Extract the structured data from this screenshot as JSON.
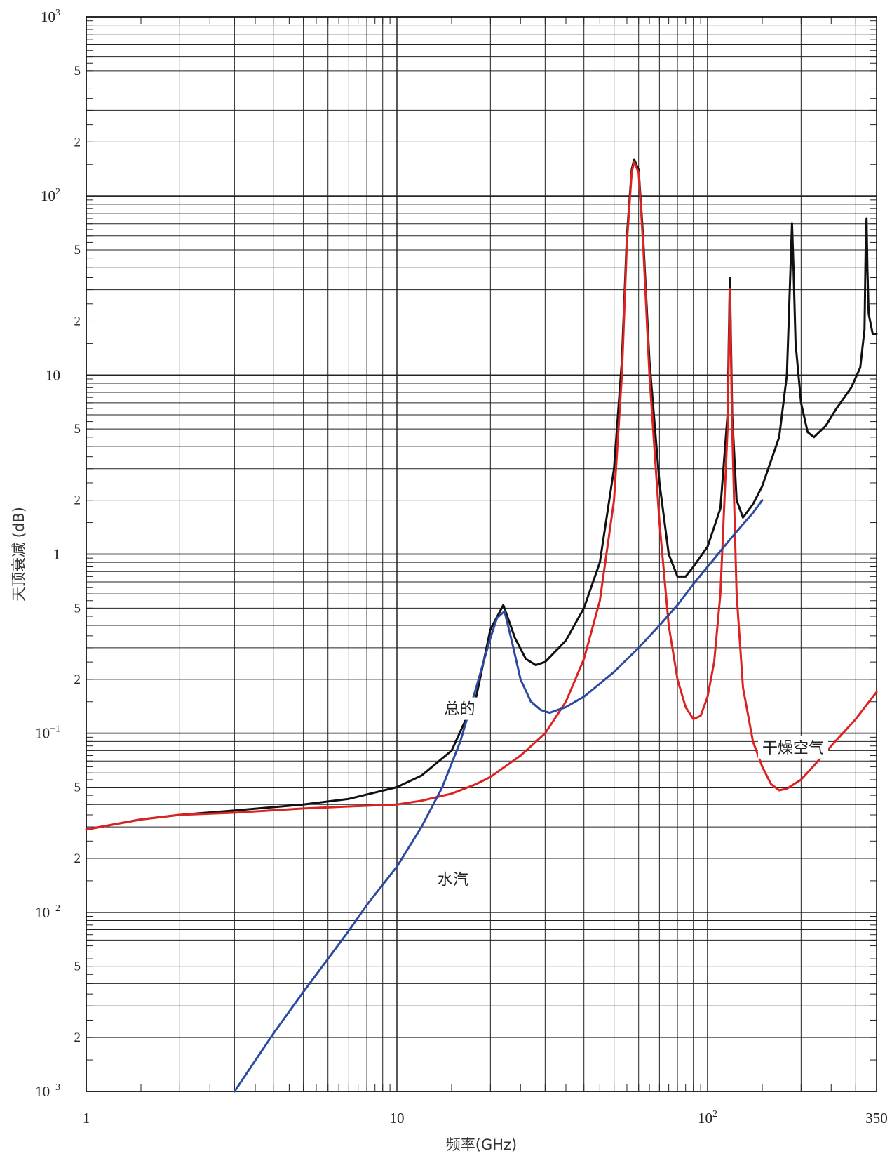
{
  "chart_data": {
    "type": "line",
    "xlabel": "频率(GHz)",
    "ylabel": "天顶衰减 (dB)",
    "x_scale": "log",
    "y_scale": "log",
    "xlim": [
      1,
      350
    ],
    "ylim": [
      0.001,
      1000
    ],
    "grid": true,
    "x_ticks": [
      "1",
      "10",
      "10^2",
      "350"
    ],
    "y_ticks": [
      "10^-3",
      "10^-2",
      "10^-1",
      "1",
      "10",
      "10^2",
      "10^3"
    ],
    "y_minor_labels": [
      "2",
      "5"
    ],
    "series": [
      {
        "name": "总的",
        "color": "#111111",
        "points": [
          [
            1,
            0.029
          ],
          [
            1.5,
            0.033
          ],
          [
            2,
            0.035
          ],
          [
            3,
            0.037
          ],
          [
            5,
            0.04
          ],
          [
            7,
            0.043
          ],
          [
            10,
            0.05
          ],
          [
            12,
            0.058
          ],
          [
            15,
            0.08
          ],
          [
            18,
            0.16
          ],
          [
            20,
            0.38
          ],
          [
            22,
            0.52
          ],
          [
            24,
            0.34
          ],
          [
            26,
            0.26
          ],
          [
            28,
            0.24
          ],
          [
            30,
            0.25
          ],
          [
            35,
            0.33
          ],
          [
            40,
            0.5
          ],
          [
            45,
            0.9
          ],
          [
            50,
            3.0
          ],
          [
            53,
            12
          ],
          [
            55,
            60
          ],
          [
            57,
            140
          ],
          [
            58,
            160
          ],
          [
            60,
            140
          ],
          [
            62,
            60
          ],
          [
            65,
            12
          ],
          [
            70,
            2.5
          ],
          [
            75,
            1.0
          ],
          [
            80,
            0.75
          ],
          [
            85,
            0.75
          ],
          [
            90,
            0.85
          ],
          [
            100,
            1.1
          ],
          [
            110,
            1.8
          ],
          [
            116,
            6
          ],
          [
            118,
            35
          ],
          [
            120,
            6
          ],
          [
            124,
            2.0
          ],
          [
            130,
            1.6
          ],
          [
            140,
            1.9
          ],
          [
            150,
            2.4
          ],
          [
            170,
            4.5
          ],
          [
            180,
            10
          ],
          [
            185,
            40
          ],
          [
            187,
            70
          ],
          [
            189,
            40
          ],
          [
            192,
            15
          ],
          [
            200,
            7
          ],
          [
            210,
            4.8
          ],
          [
            220,
            4.5
          ],
          [
            240,
            5.2
          ],
          [
            260,
            6.5
          ],
          [
            290,
            8.5
          ],
          [
            310,
            11
          ],
          [
            320,
            18
          ],
          [
            323,
            55
          ],
          [
            325,
            75
          ],
          [
            327,
            40
          ],
          [
            330,
            22
          ],
          [
            340,
            17
          ],
          [
            350,
            17
          ]
        ]
      },
      {
        "name": "干燥空气",
        "color": "#dd2222",
        "points": [
          [
            1,
            0.029
          ],
          [
            1.5,
            0.033
          ],
          [
            2,
            0.035
          ],
          [
            3,
            0.036
          ],
          [
            5,
            0.038
          ],
          [
            7,
            0.039
          ],
          [
            10,
            0.04
          ],
          [
            12,
            0.042
          ],
          [
            15,
            0.046
          ],
          [
            18,
            0.052
          ],
          [
            20,
            0.057
          ],
          [
            25,
            0.075
          ],
          [
            30,
            0.1
          ],
          [
            35,
            0.15
          ],
          [
            40,
            0.26
          ],
          [
            45,
            0.55
          ],
          [
            50,
            2.0
          ],
          [
            53,
            10
          ],
          [
            55,
            55
          ],
          [
            57,
            135
          ],
          [
            58,
            155
          ],
          [
            60,
            135
          ],
          [
            62,
            55
          ],
          [
            65,
            10
          ],
          [
            70,
            1.5
          ],
          [
            75,
            0.4
          ],
          [
            80,
            0.2
          ],
          [
            85,
            0.14
          ],
          [
            90,
            0.12
          ],
          [
            95,
            0.125
          ],
          [
            100,
            0.16
          ],
          [
            105,
            0.25
          ],
          [
            110,
            0.6
          ],
          [
            116,
            5
          ],
          [
            118,
            30
          ],
          [
            120,
            5
          ],
          [
            124,
            0.6
          ],
          [
            130,
            0.18
          ],
          [
            140,
            0.09
          ],
          [
            150,
            0.065
          ],
          [
            160,
            0.052
          ],
          [
            170,
            0.048
          ],
          [
            180,
            0.049
          ],
          [
            200,
            0.055
          ],
          [
            220,
            0.066
          ],
          [
            250,
            0.085
          ],
          [
            300,
            0.12
          ],
          [
            350,
            0.17
          ]
        ]
      },
      {
        "name": "水汽",
        "color": "#2c4aa0",
        "points": [
          [
            3,
            0.001
          ],
          [
            4,
            0.0021
          ],
          [
            5,
            0.0036
          ],
          [
            6,
            0.0055
          ],
          [
            7,
            0.0079
          ],
          [
            8,
            0.011
          ],
          [
            10,
            0.018
          ],
          [
            12,
            0.03
          ],
          [
            14,
            0.05
          ],
          [
            16,
            0.09
          ],
          [
            18,
            0.18
          ],
          [
            20,
            0.34
          ],
          [
            21,
            0.44
          ],
          [
            22.2,
            0.48
          ],
          [
            23.5,
            0.32
          ],
          [
            25,
            0.2
          ],
          [
            27,
            0.15
          ],
          [
            29,
            0.135
          ],
          [
            31,
            0.13
          ],
          [
            35,
            0.14
          ],
          [
            40,
            0.16
          ],
          [
            50,
            0.22
          ],
          [
            60,
            0.3
          ],
          [
            70,
            0.4
          ],
          [
            80,
            0.52
          ],
          [
            90,
            0.68
          ],
          [
            100,
            0.85
          ],
          [
            120,
            1.25
          ],
          [
            140,
            1.7
          ],
          [
            150,
            2.0
          ]
        ]
      }
    ],
    "annotations": [
      {
        "text": "总的",
        "x": 14.2,
        "y": 0.13
      },
      {
        "text": "干燥空气",
        "x": 150,
        "y": 0.079
      },
      {
        "text": "水汽",
        "x": 13.5,
        "y": 0.0145
      }
    ]
  }
}
